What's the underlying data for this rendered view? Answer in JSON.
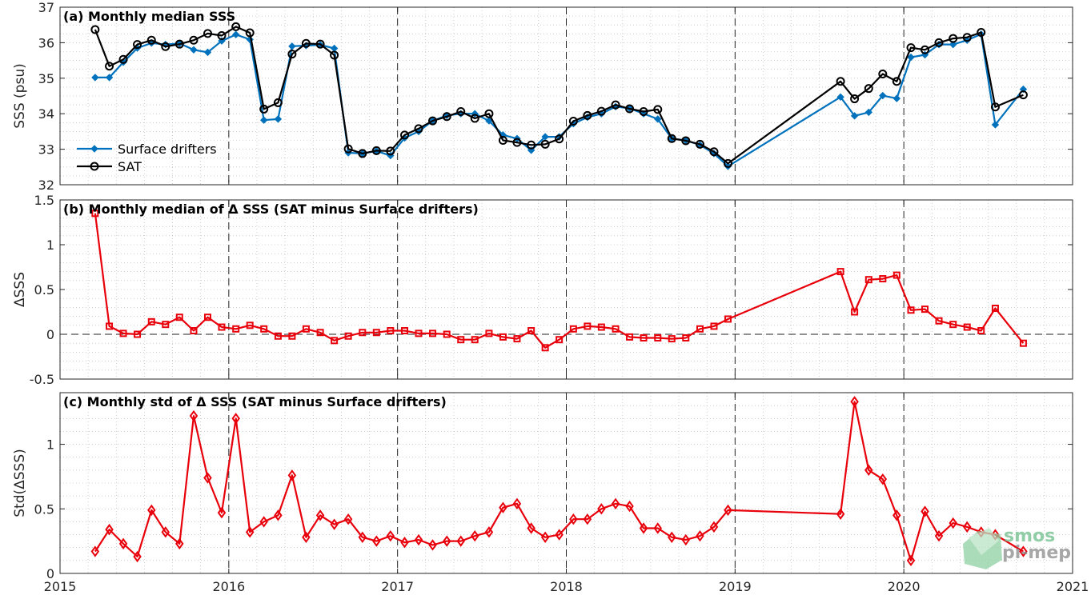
{
  "colors": {
    "drifters": "#0072BD",
    "sat": "#000000",
    "delta": "#E8000B",
    "grid": "#B0B0B0",
    "axis": "#262626",
    "watermark_top": "#6DBE8C",
    "watermark_bottom": "#8A8A8A"
  },
  "watermark": {
    "line1": "smos",
    "line2": "pi-mep",
    "icon": "smos-pimep-logo-icon"
  },
  "chart_data": [
    {
      "id": "a",
      "type": "line",
      "title": "(a) Monthly median SSS",
      "ylabel": "SSS (psu)",
      "xlim": [
        2015,
        2021
      ],
      "ylim": [
        32,
        37
      ],
      "yticks": [
        32,
        33,
        34,
        35,
        36,
        37
      ],
      "ytick_labels": [
        "32",
        "33",
        "34",
        "35",
        "36",
        "37"
      ],
      "grid": true,
      "legend": "left",
      "series": [
        {
          "name": "Surface drifters",
          "marker": "dot",
          "x": [
            2015.208,
            2015.292,
            2015.375,
            2015.458,
            2015.542,
            2015.625,
            2015.708,
            2015.792,
            2015.875,
            2015.958,
            2016.042,
            2016.125,
            2016.208,
            2016.292,
            2016.375,
            2016.458,
            2016.542,
            2016.625,
            2016.708,
            2016.792,
            2016.875,
            2016.958,
            2017.042,
            2017.125,
            2017.208,
            2017.292,
            2017.375,
            2017.458,
            2017.542,
            2017.625,
            2017.708,
            2017.792,
            2017.875,
            2017.958,
            2018.042,
            2018.125,
            2018.208,
            2018.292,
            2018.375,
            2018.458,
            2018.542,
            2018.625,
            2018.708,
            2018.792,
            2018.875,
            2018.958,
            2019.625,
            2019.708,
            2019.792,
            2019.875,
            2019.958,
            2020.042,
            2020.125,
            2020.208,
            2020.292,
            2020.375,
            2020.458,
            2020.542,
            2020.708
          ],
          "y": [
            35.02,
            35.02,
            35.45,
            35.85,
            35.99,
            35.95,
            35.98,
            35.8,
            35.73,
            36.05,
            36.23,
            36.09,
            33.82,
            33.85,
            35.9,
            35.92,
            35.94,
            35.84,
            32.9,
            32.88,
            32.95,
            32.82,
            33.32,
            33.5,
            33.8,
            33.95,
            34.0,
            34.0,
            33.8,
            33.4,
            33.3,
            32.97,
            33.35,
            33.35,
            33.72,
            33.9,
            34.0,
            34.2,
            34.15,
            34.0,
            33.85,
            33.3,
            33.25,
            33.12,
            32.88,
            32.52,
            34.47,
            33.94,
            34.04,
            34.51,
            34.43,
            35.59,
            35.66,
            35.95,
            35.95,
            36.07,
            36.24,
            33.69,
            34.69
          ]
        },
        {
          "name": "SAT",
          "marker": "circle",
          "x": [
            2015.208,
            2015.292,
            2015.375,
            2015.458,
            2015.542,
            2015.625,
            2015.708,
            2015.792,
            2015.875,
            2015.958,
            2016.042,
            2016.125,
            2016.208,
            2016.292,
            2016.375,
            2016.458,
            2016.542,
            2016.625,
            2016.708,
            2016.792,
            2016.875,
            2016.958,
            2017.042,
            2017.125,
            2017.208,
            2017.292,
            2017.375,
            2017.458,
            2017.542,
            2017.625,
            2017.708,
            2017.792,
            2017.875,
            2017.958,
            2018.042,
            2018.125,
            2018.208,
            2018.292,
            2018.375,
            2018.458,
            2018.542,
            2018.625,
            2018.708,
            2018.792,
            2018.875,
            2018.958,
            2019.625,
            2019.708,
            2019.792,
            2019.875,
            2019.958,
            2020.042,
            2020.125,
            2020.208,
            2020.292,
            2020.375,
            2020.458,
            2020.542,
            2020.708
          ],
          "y": [
            36.37,
            35.34,
            35.53,
            35.95,
            36.07,
            35.89,
            35.96,
            36.07,
            36.26,
            36.2,
            36.45,
            36.28,
            34.13,
            34.31,
            35.68,
            35.98,
            35.96,
            35.65,
            33.01,
            32.88,
            32.96,
            32.95,
            33.4,
            33.58,
            33.8,
            33.92,
            34.06,
            33.87,
            34.0,
            33.25,
            33.19,
            33.12,
            33.14,
            33.29,
            33.79,
            33.95,
            34.07,
            34.25,
            34.14,
            34.06,
            34.12,
            33.3,
            33.24,
            33.14,
            32.93,
            32.6,
            34.91,
            34.42,
            34.71,
            35.12,
            34.91,
            35.86,
            35.8,
            36.0,
            36.12,
            36.15,
            36.29,
            34.19,
            34.53
          ]
        }
      ]
    },
    {
      "id": "b",
      "type": "line",
      "title": "(b) Monthly median of Δ SSS (SAT minus Surface drifters)",
      "ylabel": "ΔSSS",
      "xlim": [
        2015,
        2021
      ],
      "ylim": [
        -0.5,
        1.5
      ],
      "yticks": [
        -0.5,
        0,
        0.5,
        1,
        1.5
      ],
      "ytick_labels": [
        "-0.5",
        "0",
        "0.5",
        "1",
        "1.5"
      ],
      "zero_line": true,
      "grid": true,
      "series": [
        {
          "marker": "square",
          "x": [
            2015.208,
            2015.292,
            2015.375,
            2015.458,
            2015.542,
            2015.625,
            2015.708,
            2015.792,
            2015.875,
            2015.958,
            2016.042,
            2016.125,
            2016.208,
            2016.292,
            2016.375,
            2016.458,
            2016.542,
            2016.625,
            2016.708,
            2016.792,
            2016.875,
            2016.958,
            2017.042,
            2017.125,
            2017.208,
            2017.292,
            2017.375,
            2017.458,
            2017.542,
            2017.625,
            2017.708,
            2017.792,
            2017.875,
            2017.958,
            2018.042,
            2018.125,
            2018.208,
            2018.292,
            2018.375,
            2018.458,
            2018.542,
            2018.625,
            2018.708,
            2018.792,
            2018.875,
            2018.958,
            2019.625,
            2019.708,
            2019.792,
            2019.875,
            2019.958,
            2020.042,
            2020.125,
            2020.208,
            2020.292,
            2020.375,
            2020.458,
            2020.542,
            2020.708
          ],
          "y": [
            1.35,
            0.09,
            0.01,
            0.0,
            0.14,
            0.11,
            0.19,
            0.04,
            0.19,
            0.08,
            0.06,
            0.1,
            0.06,
            -0.02,
            -0.02,
            0.06,
            0.02,
            -0.07,
            -0.02,
            0.02,
            0.02,
            0.04,
            0.04,
            0.01,
            0.01,
            0.0,
            -0.06,
            -0.06,
            0.01,
            -0.03,
            -0.05,
            0.04,
            -0.15,
            -0.06,
            0.06,
            0.09,
            0.08,
            0.06,
            -0.03,
            -0.04,
            -0.04,
            -0.05,
            -0.04,
            0.06,
            0.09,
            0.17,
            0.7,
            0.25,
            0.61,
            0.62,
            0.66,
            0.27,
            0.28,
            0.15,
            0.11,
            0.08,
            0.04,
            0.29,
            -0.1
          ]
        }
      ]
    },
    {
      "id": "c",
      "type": "line",
      "title": "(c) Monthly std of Δ SSS (SAT minus Surface drifters)",
      "ylabel": "Std(ΔSSS)",
      "xlim": [
        2015,
        2021
      ],
      "ylim": [
        0,
        1.4
      ],
      "yticks": [
        0,
        0.5,
        1
      ],
      "ytick_labels": [
        "0",
        "0.5",
        "1"
      ],
      "xticks": [
        2015,
        2016,
        2017,
        2018,
        2019,
        2020,
        2021
      ],
      "xtick_labels": [
        "2015",
        "2016",
        "2017",
        "2018",
        "2019",
        "2020",
        "2021"
      ],
      "grid": true,
      "series": [
        {
          "marker": "diamond",
          "x": [
            2015.208,
            2015.292,
            2015.375,
            2015.458,
            2015.542,
            2015.625,
            2015.708,
            2015.792,
            2015.875,
            2015.958,
            2016.042,
            2016.125,
            2016.208,
            2016.292,
            2016.375,
            2016.458,
            2016.542,
            2016.625,
            2016.708,
            2016.792,
            2016.875,
            2016.958,
            2017.042,
            2017.125,
            2017.208,
            2017.292,
            2017.375,
            2017.458,
            2017.542,
            2017.625,
            2017.708,
            2017.792,
            2017.875,
            2017.958,
            2018.042,
            2018.125,
            2018.208,
            2018.292,
            2018.375,
            2018.458,
            2018.542,
            2018.625,
            2018.708,
            2018.792,
            2018.875,
            2018.958,
            2019.625,
            2019.708,
            2019.792,
            2019.875,
            2019.958,
            2020.042,
            2020.125,
            2020.208,
            2020.292,
            2020.375,
            2020.458,
            2020.542,
            2020.708
          ],
          "y": [
            0.17,
            0.34,
            0.23,
            0.13,
            0.49,
            0.32,
            0.23,
            1.22,
            0.74,
            0.47,
            1.2,
            0.32,
            0.4,
            0.45,
            0.76,
            0.28,
            0.45,
            0.38,
            0.42,
            0.28,
            0.25,
            0.29,
            0.24,
            0.26,
            0.22,
            0.25,
            0.25,
            0.29,
            0.32,
            0.51,
            0.54,
            0.35,
            0.28,
            0.3,
            0.42,
            0.42,
            0.5,
            0.54,
            0.52,
            0.35,
            0.35,
            0.28,
            0.26,
            0.29,
            0.36,
            0.49,
            0.46,
            1.33,
            0.8,
            0.73,
            0.45,
            0.1,
            0.48,
            0.29,
            0.39,
            0.36,
            0.32,
            0.3,
            0.17
          ]
        }
      ]
    }
  ]
}
